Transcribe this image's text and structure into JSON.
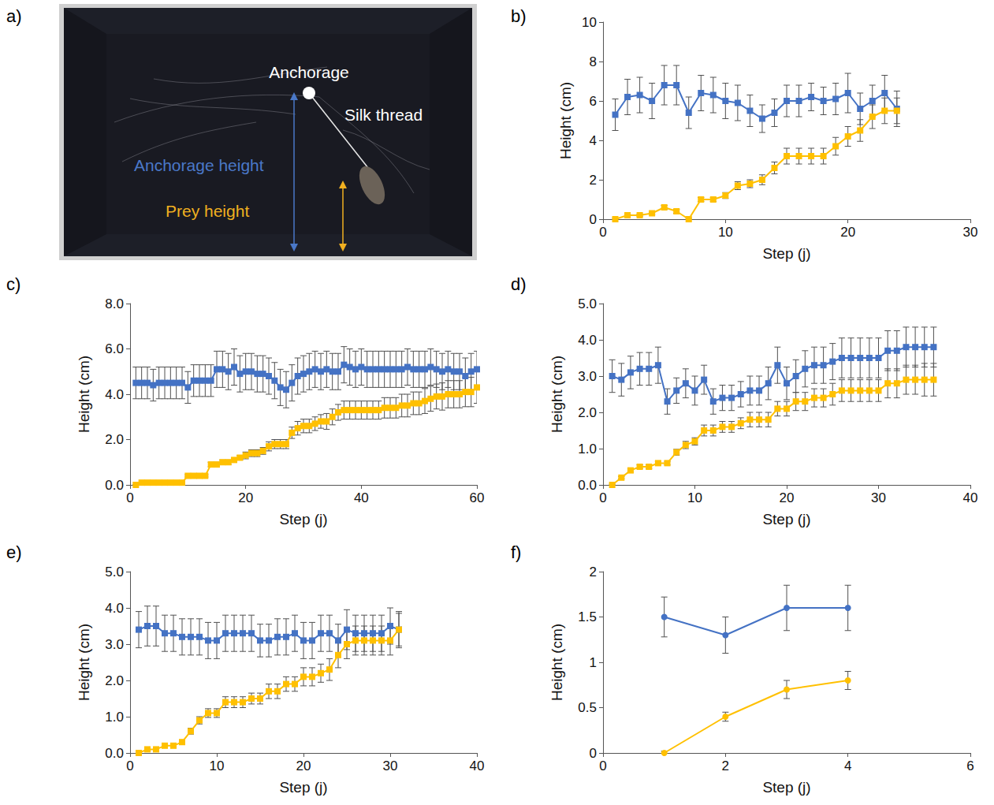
{
  "photo": {
    "panel": "a)",
    "labels": {
      "anchorage": "Anchorage",
      "silk_thread": "Silk thread",
      "anchorage_height": "Anchorage height",
      "prey_height": "Prey height"
    }
  },
  "chart_data": [
    {
      "panel": "b)",
      "type": "line",
      "x_label": "Step (j)",
      "y_label": "Height (cm)",
      "xlim": [
        0,
        30
      ],
      "xticks": [
        0,
        10,
        20,
        30
      ],
      "ylim": [
        0,
        10
      ],
      "yticks": [
        0,
        2,
        4,
        6,
        8,
        10
      ],
      "grid": false,
      "x": [
        1,
        2,
        3,
        4,
        5,
        6,
        7,
        8,
        9,
        10,
        11,
        12,
        13,
        14,
        15,
        16,
        17,
        18,
        19,
        20,
        21,
        22,
        23,
        24
      ],
      "series": [
        {
          "color": "#4472c4",
          "marker": "square",
          "values": [
            5.3,
            6.2,
            6.3,
            6.0,
            6.8,
            6.8,
            5.4,
            6.4,
            6.3,
            6.0,
            5.9,
            5.5,
            5.1,
            5.4,
            6.0,
            6.0,
            6.2,
            6.0,
            6.1,
            6.4,
            5.6,
            6.0,
            6.4,
            5.6
          ],
          "errors": [
            0.8,
            0.9,
            0.9,
            0.9,
            1.0,
            1.0,
            0.8,
            0.9,
            0.9,
            0.9,
            0.9,
            0.8,
            0.7,
            0.7,
            0.8,
            0.8,
            0.7,
            0.7,
            0.8,
            1.0,
            0.8,
            0.8,
            0.9,
            0.9
          ]
        },
        {
          "color": "#ffc000",
          "marker": "square",
          "values": [
            0.0,
            0.2,
            0.2,
            0.3,
            0.6,
            0.4,
            0.0,
            1.0,
            1.0,
            1.2,
            1.7,
            1.8,
            2.0,
            2.6,
            3.2,
            3.2,
            3.2,
            3.2,
            3.7,
            4.2,
            4.5,
            5.2,
            5.5,
            5.5
          ],
          "errors": [
            0.05,
            0.05,
            0.05,
            0.05,
            0.1,
            0.1,
            0.05,
            0.1,
            0.1,
            0.15,
            0.2,
            0.2,
            0.25,
            0.3,
            0.4,
            0.4,
            0.4,
            0.4,
            0.45,
            0.5,
            0.55,
            0.6,
            0.65,
            0.65
          ]
        }
      ]
    },
    {
      "panel": "c)",
      "type": "line",
      "x_label": "Step (j)",
      "y_label": "Height (cm)",
      "xlim": [
        0,
        60
      ],
      "xticks": [
        0,
        20,
        40,
        60
      ],
      "ylim": [
        0,
        8
      ],
      "yticks": [
        {
          "value": 0,
          "label": "0.0"
        },
        {
          "value": 2,
          "label": "2.0"
        },
        {
          "value": 4,
          "label": "4.0"
        },
        {
          "value": 6,
          "label": "6.0"
        },
        {
          "value": 8,
          "label": "8.0"
        }
      ],
      "grid": false,
      "x": [
        1,
        2,
        3,
        4,
        5,
        6,
        7,
        8,
        9,
        10,
        11,
        12,
        13,
        14,
        15,
        16,
        17,
        18,
        19,
        20,
        21,
        22,
        23,
        24,
        25,
        26,
        27,
        28,
        29,
        30,
        31,
        32,
        33,
        34,
        35,
        36,
        37,
        38,
        39,
        40,
        41,
        42,
        43,
        44,
        45,
        46,
        47,
        48,
        49,
        50,
        51,
        52,
        53,
        54,
        55,
        56,
        57,
        58,
        59,
        60
      ],
      "series": [
        {
          "color": "#4472c4",
          "marker": "square",
          "values": [
            4.5,
            4.5,
            4.5,
            4.4,
            4.5,
            4.5,
            4.5,
            4.5,
            4.5,
            4.3,
            4.6,
            4.6,
            4.6,
            4.6,
            5.1,
            5.1,
            5.0,
            5.2,
            4.9,
            5.0,
            5.0,
            4.9,
            4.9,
            4.8,
            4.6,
            4.3,
            4.2,
            4.5,
            4.8,
            4.9,
            5.0,
            5.1,
            5.0,
            5.1,
            5.0,
            5.0,
            5.3,
            5.2,
            5.1,
            5.2,
            5.1,
            5.1,
            5.1,
            5.1,
            5.1,
            5.1,
            5.1,
            5.2,
            5.1,
            5.1,
            5.1,
            5.2,
            5.1,
            5.0,
            5.1,
            5.0,
            5.0,
            4.8,
            5.0,
            5.1
          ],
          "errors": [
            0.7,
            0.7,
            0.7,
            0.7,
            0.7,
            0.7,
            0.7,
            0.7,
            0.7,
            0.7,
            0.7,
            0.7,
            0.7,
            0.7,
            0.8,
            0.8,
            0.8,
            0.8,
            0.8,
            0.8,
            0.8,
            0.8,
            0.8,
            0.8,
            0.8,
            0.8,
            0.8,
            0.8,
            0.8,
            0.8,
            0.8,
            0.8,
            0.8,
            0.8,
            0.8,
            0.8,
            0.8,
            0.8,
            0.8,
            0.8,
            0.8,
            0.8,
            0.8,
            0.8,
            0.8,
            0.8,
            0.8,
            0.8,
            0.8,
            0.8,
            0.8,
            0.8,
            0.8,
            0.8,
            0.8,
            0.8,
            0.8,
            0.8,
            0.8,
            0.8
          ]
        },
        {
          "color": "#ffc000",
          "marker": "square",
          "values": [
            0.0,
            0.1,
            0.1,
            0.1,
            0.1,
            0.1,
            0.1,
            0.1,
            0.1,
            0.4,
            0.4,
            0.4,
            0.4,
            0.9,
            0.9,
            1.0,
            1.0,
            1.1,
            1.2,
            1.3,
            1.4,
            1.4,
            1.5,
            1.7,
            1.8,
            1.8,
            1.8,
            2.3,
            2.5,
            2.6,
            2.6,
            2.7,
            2.8,
            2.8,
            3.0,
            3.2,
            3.3,
            3.3,
            3.3,
            3.3,
            3.3,
            3.3,
            3.3,
            3.4,
            3.4,
            3.4,
            3.5,
            3.5,
            3.6,
            3.6,
            3.7,
            3.8,
            3.9,
            3.9,
            4.0,
            4.0,
            4.0,
            4.1,
            4.1,
            4.3
          ],
          "errors": [
            0.02,
            0.02,
            0.02,
            0.02,
            0.02,
            0.02,
            0.02,
            0.02,
            0.02,
            0.05,
            0.05,
            0.05,
            0.05,
            0.1,
            0.1,
            0.1,
            0.1,
            0.1,
            0.1,
            0.15,
            0.15,
            0.15,
            0.15,
            0.2,
            0.2,
            0.2,
            0.2,
            0.25,
            0.3,
            0.3,
            0.3,
            0.3,
            0.3,
            0.35,
            0.35,
            0.35,
            0.4,
            0.4,
            0.4,
            0.4,
            0.4,
            0.4,
            0.4,
            0.45,
            0.45,
            0.45,
            0.5,
            0.5,
            0.5,
            0.5,
            0.55,
            0.55,
            0.55,
            0.6,
            0.6,
            0.6,
            0.6,
            0.65,
            0.65,
            0.7
          ]
        }
      ]
    },
    {
      "panel": "d)",
      "type": "line",
      "x_label": "Step (j)",
      "y_label": "Height (cm)",
      "xlim": [
        0,
        40
      ],
      "xticks": [
        0,
        10,
        20,
        30,
        40
      ],
      "ylim": [
        0,
        5
      ],
      "yticks": [
        {
          "value": 0,
          "label": "0.0"
        },
        {
          "value": 1,
          "label": "1.0"
        },
        {
          "value": 2,
          "label": "2.0"
        },
        {
          "value": 3,
          "label": "3.0"
        },
        {
          "value": 4,
          "label": "4.0"
        },
        {
          "value": 5,
          "label": "5.0"
        }
      ],
      "grid": false,
      "x": [
        1,
        2,
        3,
        4,
        5,
        6,
        7,
        8,
        9,
        10,
        11,
        12,
        13,
        14,
        15,
        16,
        17,
        18,
        19,
        20,
        21,
        22,
        23,
        24,
        25,
        26,
        27,
        28,
        29,
        30,
        31,
        32,
        33,
        34,
        35,
        36
      ],
      "series": [
        {
          "color": "#4472c4",
          "marker": "square",
          "values": [
            3.0,
            2.9,
            3.1,
            3.2,
            3.2,
            3.3,
            2.3,
            2.6,
            2.8,
            2.6,
            2.9,
            2.3,
            2.4,
            2.4,
            2.5,
            2.6,
            2.6,
            2.8,
            3.3,
            2.8,
            3.0,
            3.2,
            3.3,
            3.3,
            3.4,
            3.5,
            3.5,
            3.5,
            3.5,
            3.5,
            3.7,
            3.7,
            3.8,
            3.8,
            3.8,
            3.8
          ],
          "errors": [
            0.45,
            0.45,
            0.45,
            0.45,
            0.45,
            0.5,
            0.35,
            0.35,
            0.4,
            0.4,
            0.4,
            0.35,
            0.35,
            0.35,
            0.35,
            0.4,
            0.4,
            0.45,
            0.5,
            0.45,
            0.45,
            0.5,
            0.5,
            0.5,
            0.5,
            0.55,
            0.55,
            0.55,
            0.55,
            0.55,
            0.55,
            0.55,
            0.55,
            0.55,
            0.55,
            0.55
          ]
        },
        {
          "color": "#ffc000",
          "marker": "square",
          "values": [
            0.0,
            0.2,
            0.4,
            0.5,
            0.5,
            0.6,
            0.6,
            0.9,
            1.1,
            1.2,
            1.5,
            1.5,
            1.6,
            1.6,
            1.7,
            1.8,
            1.8,
            1.8,
            2.1,
            2.1,
            2.3,
            2.3,
            2.4,
            2.4,
            2.5,
            2.6,
            2.6,
            2.6,
            2.6,
            2.6,
            2.8,
            2.8,
            2.9,
            2.9,
            2.9,
            2.9
          ],
          "errors": [
            0.02,
            0.03,
            0.05,
            0.05,
            0.05,
            0.05,
            0.05,
            0.08,
            0.1,
            0.1,
            0.15,
            0.15,
            0.15,
            0.15,
            0.15,
            0.2,
            0.2,
            0.2,
            0.2,
            0.2,
            0.25,
            0.25,
            0.25,
            0.25,
            0.3,
            0.3,
            0.3,
            0.3,
            0.3,
            0.3,
            0.4,
            0.4,
            0.4,
            0.4,
            0.45,
            0.45
          ]
        }
      ]
    },
    {
      "panel": "e)",
      "type": "line",
      "x_label": "Step (j)",
      "y_label": "Height (cm)",
      "xlim": [
        0,
        40
      ],
      "xticks": [
        0,
        10,
        20,
        30,
        40
      ],
      "ylim": [
        0,
        5
      ],
      "yticks": [
        {
          "value": 0,
          "label": "0.0"
        },
        {
          "value": 1,
          "label": "1.0"
        },
        {
          "value": 2,
          "label": "2.0"
        },
        {
          "value": 3,
          "label": "3.0"
        },
        {
          "value": 4,
          "label": "4.0"
        },
        {
          "value": 5,
          "label": "5.0"
        }
      ],
      "grid": false,
      "x": [
        1,
        2,
        3,
        4,
        5,
        6,
        7,
        8,
        9,
        10,
        11,
        12,
        13,
        14,
        15,
        16,
        17,
        18,
        19,
        20,
        21,
        22,
        23,
        24,
        25,
        26,
        27,
        28,
        29,
        30,
        31
      ],
      "series": [
        {
          "color": "#4472c4",
          "marker": "square",
          "values": [
            3.4,
            3.5,
            3.5,
            3.3,
            3.3,
            3.2,
            3.2,
            3.2,
            3.1,
            3.1,
            3.3,
            3.3,
            3.3,
            3.3,
            3.1,
            3.1,
            3.2,
            3.2,
            3.3,
            3.1,
            3.1,
            3.3,
            3.3,
            3.1,
            3.4,
            3.3,
            3.3,
            3.3,
            3.3,
            3.5,
            3.4
          ],
          "errors": [
            0.5,
            0.55,
            0.55,
            0.5,
            0.5,
            0.5,
            0.5,
            0.5,
            0.5,
            0.5,
            0.5,
            0.5,
            0.5,
            0.5,
            0.45,
            0.45,
            0.5,
            0.5,
            0.5,
            0.5,
            0.5,
            0.5,
            0.5,
            0.45,
            0.55,
            0.5,
            0.5,
            0.5,
            0.5,
            0.5,
            0.5
          ]
        },
        {
          "color": "#ffc000",
          "marker": "square",
          "values": [
            0.0,
            0.1,
            0.1,
            0.2,
            0.2,
            0.3,
            0.6,
            0.9,
            1.1,
            1.1,
            1.4,
            1.4,
            1.4,
            1.5,
            1.5,
            1.7,
            1.7,
            1.9,
            1.9,
            2.1,
            2.1,
            2.2,
            2.3,
            2.7,
            3.0,
            3.1,
            3.1,
            3.1,
            3.1,
            3.1,
            3.4
          ],
          "errors": [
            0.02,
            0.03,
            0.03,
            0.05,
            0.05,
            0.05,
            0.08,
            0.1,
            0.12,
            0.12,
            0.15,
            0.15,
            0.15,
            0.15,
            0.15,
            0.2,
            0.2,
            0.2,
            0.2,
            0.25,
            0.25,
            0.25,
            0.3,
            0.35,
            0.4,
            0.4,
            0.4,
            0.4,
            0.4,
            0.4,
            0.45
          ]
        }
      ]
    },
    {
      "panel": "f)",
      "type": "line",
      "x_label": "Step (j)",
      "y_label": "Height (cm)",
      "xlim": [
        0,
        6
      ],
      "xticks": [
        0,
        2,
        4,
        6
      ],
      "ylim": [
        0,
        2
      ],
      "yticks": [
        0,
        0.5,
        1,
        1.5,
        2
      ],
      "grid": false,
      "x": [
        1,
        2,
        3,
        4
      ],
      "series": [
        {
          "color": "#4472c4",
          "marker": "circle",
          "values": [
            1.5,
            1.3,
            1.6,
            1.6
          ],
          "errors": [
            0.22,
            0.2,
            0.25,
            0.25
          ]
        },
        {
          "color": "#ffc000",
          "marker": "circle",
          "values": [
            0,
            0.4,
            0.7,
            0.8
          ],
          "errors": [
            0.02,
            0.05,
            0.1,
            0.1
          ]
        }
      ]
    }
  ]
}
